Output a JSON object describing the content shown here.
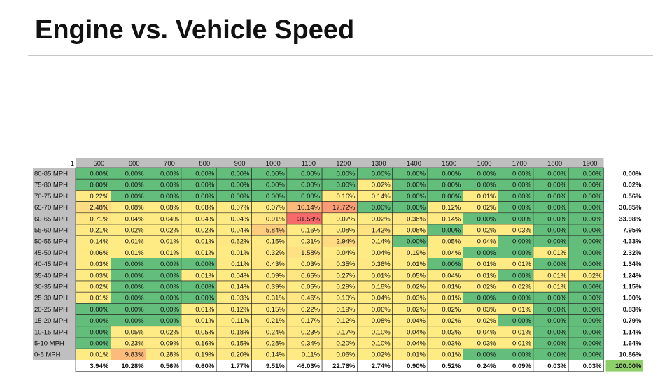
{
  "title": "Engine vs. Vehicle Speed",
  "chart_data": {
    "type": "heatmap",
    "corner_label": "1",
    "columns": [
      "500",
      "600",
      "700",
      "800",
      "900",
      "1000",
      "1100",
      "1200",
      "1300",
      "1400",
      "1500",
      "1600",
      "1700",
      "1800",
      "1900"
    ],
    "rows": [
      "80-85 MPH",
      "75-80 MPH",
      "70-75 MPH",
      "65-70 MPH",
      "60-65 MPH",
      "55-60 MPH",
      "50-55 MPH",
      "45-50 MPH",
      "40-45 MPH",
      "35-40 MPH",
      "30-35 MPH",
      "25-30 MPH",
      "20-25 MPH",
      "15-20 MPH",
      "10-15 MPH",
      "5-10 MPH",
      "0-5 MPH"
    ],
    "values": [
      [
        0.0,
        0.0,
        0.0,
        0.0,
        0.0,
        0.0,
        0.0,
        0.0,
        0.0,
        0.0,
        0.0,
        0.0,
        0.0,
        0.0,
        0.0
      ],
      [
        0.0,
        0.0,
        0.0,
        0.0,
        0.0,
        0.0,
        0.0,
        0.0,
        0.02,
        0.0,
        0.0,
        0.0,
        0.0,
        0.0,
        0.0
      ],
      [
        0.22,
        0.0,
        0.0,
        0.0,
        0.0,
        0.0,
        0.0,
        0.16,
        0.14,
        0.0,
        0.0,
        0.01,
        0.0,
        0.0,
        0.0
      ],
      [
        2.48,
        0.08,
        0.08,
        0.08,
        0.07,
        0.07,
        10.14,
        17.72,
        0.0,
        0.0,
        0.12,
        0.02,
        0.0,
        0.0,
        0.0
      ],
      [
        0.71,
        0.04,
        0.04,
        0.04,
        0.04,
        0.91,
        31.58,
        0.07,
        0.02,
        0.38,
        0.14,
        0.0,
        0.0,
        0.0,
        0.0
      ],
      [
        0.21,
        0.02,
        0.02,
        0.02,
        0.04,
        5.84,
        0.16,
        0.08,
        1.42,
        0.08,
        0.0,
        0.02,
        0.03,
        0.0,
        0.0
      ],
      [
        0.14,
        0.01,
        0.01,
        0.01,
        0.52,
        0.15,
        0.31,
        2.94,
        0.14,
        0.0,
        0.05,
        0.04,
        0.0,
        0.0,
        0.0
      ],
      [
        0.06,
        0.01,
        0.01,
        0.01,
        0.01,
        0.32,
        1.58,
        0.04,
        0.04,
        0.19,
        0.04,
        0.0,
        0.0,
        0.01,
        0.0
      ],
      [
        0.03,
        0.0,
        0.0,
        0.0,
        0.11,
        0.43,
        0.03,
        0.35,
        0.36,
        0.01,
        0.0,
        0.01,
        0.01,
        0.0,
        0.0
      ],
      [
        0.03,
        0.0,
        0.0,
        0.01,
        0.04,
        0.09,
        0.65,
        0.27,
        0.01,
        0.05,
        0.04,
        0.01,
        0.0,
        0.01,
        0.02
      ],
      [
        0.02,
        0.0,
        0.0,
        0.0,
        0.14,
        0.39,
        0.05,
        0.29,
        0.18,
        0.02,
        0.01,
        0.02,
        0.02,
        0.01,
        0.0
      ],
      [
        0.01,
        0.0,
        0.0,
        0.0,
        0.03,
        0.31,
        0.46,
        0.1,
        0.04,
        0.03,
        0.01,
        0.0,
        0.0,
        0.0,
        0.0
      ],
      [
        0.0,
        0.0,
        0.0,
        0.01,
        0.12,
        0.15,
        0.22,
        0.19,
        0.06,
        0.02,
        0.02,
        0.03,
        0.01,
        0.0,
        0.0
      ],
      [
        0.0,
        0.0,
        0.0,
        0.01,
        0.11,
        0.21,
        0.17,
        0.12,
        0.08,
        0.04,
        0.02,
        0.02,
        0.0,
        0.0,
        0.0
      ],
      [
        0.0,
        0.05,
        0.02,
        0.05,
        0.18,
        0.24,
        0.23,
        0.17,
        0.1,
        0.04,
        0.03,
        0.04,
        0.01,
        0.0,
        0.0
      ],
      [
        0.0,
        0.23,
        0.09,
        0.16,
        0.15,
        0.28,
        0.34,
        0.2,
        0.1,
        0.04,
        0.03,
        0.03,
        0.01,
        0.0,
        0.0
      ],
      [
        0.01,
        9.83,
        0.28,
        0.19,
        0.2,
        0.14,
        0.11,
        0.06,
        0.02,
        0.01,
        0.01,
        0.0,
        0.0,
        0.0,
        0.0
      ]
    ],
    "row_totals": [
      0.0,
      0.02,
      0.56,
      30.85,
      33.98,
      7.95,
      4.33,
      2.32,
      1.34,
      1.24,
      1.15,
      1.0,
      0.83,
      0.79,
      1.14,
      1.64,
      10.86
    ],
    "column_totals": [
      3.94,
      10.28,
      0.56,
      0.6,
      1.77,
      9.51,
      46.03,
      22.76,
      2.74,
      0.9,
      0.52,
      0.24,
      0.09,
      0.03,
      0.03
    ],
    "grand_total": 100.0,
    "value_format": "percent_2dp",
    "color_scale": {
      "low": "#63be7b",
      "mid": "#ffeb84",
      "high": "#f8696b"
    },
    "header_color": "#bfbfbf",
    "grand_total_color": "#8fcf6a"
  }
}
